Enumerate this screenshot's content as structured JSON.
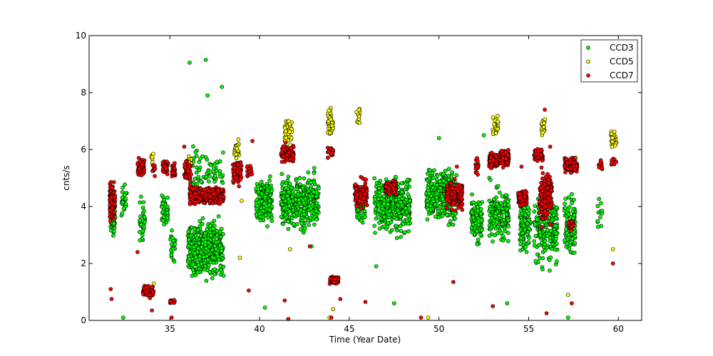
{
  "chart_data": {
    "type": "scatter",
    "title": "",
    "xlabel": "Time (Year Date)",
    "ylabel": "cnts/s",
    "xlim": [
      30.5,
      61.3
    ],
    "ylim": [
      0,
      10
    ],
    "xticks": [
      35,
      40,
      45,
      50,
      55,
      60
    ],
    "yticks": [
      0,
      2,
      4,
      6,
      8,
      10
    ],
    "grid": false,
    "legend_position": "top-right",
    "series": [
      {
        "name": "CCD3",
        "color": "#00ff00",
        "clusters": [
          {
            "x": [
              31.7,
              31.95
            ],
            "y": [
              2.8,
              4.2
            ],
            "n": 40
          },
          {
            "x": [
              32.3,
              32.6
            ],
            "y": [
              3.4,
              5.2
            ],
            "n": 25
          },
          {
            "x": [
              33.3,
              33.6
            ],
            "y": [
              2.3,
              4.6
            ],
            "n": 35
          },
          {
            "x": [
              34.5,
              34.9
            ],
            "y": [
              2.8,
              4.8
            ],
            "n": 45
          },
          {
            "x": [
              35.0,
              35.3
            ],
            "y": [
              1.5,
              3.8
            ],
            "n": 20
          },
          {
            "x": [
              36.0,
              38.0
            ],
            "y": [
              1.0,
              4.0
            ],
            "n": 420
          },
          {
            "x": [
              36.0,
              38.0
            ],
            "y": [
              4.0,
              6.5
            ],
            "n": 70
          },
          {
            "x": [
              39.8,
              40.7
            ],
            "y": [
              3.0,
              5.4
            ],
            "n": 170
          },
          {
            "x": [
              41.2,
              43.3
            ],
            "y": [
              2.8,
              5.5
            ],
            "n": 380
          },
          {
            "x": [
              45.4,
              45.9
            ],
            "y": [
              3.0,
              5.0
            ],
            "n": 45
          },
          {
            "x": [
              46.4,
              48.4
            ],
            "y": [
              2.5,
              5.6
            ],
            "n": 330
          },
          {
            "x": [
              49.3,
              51.0
            ],
            "y": [
              3.0,
              5.8
            ],
            "n": 330
          },
          {
            "x": [
              51.8,
              52.4
            ],
            "y": [
              2.3,
              4.8
            ],
            "n": 110
          },
          {
            "x": [
              52.8,
              53.9
            ],
            "y": [
              2.2,
              5.2
            ],
            "n": 160
          },
          {
            "x": [
              54.5,
              55.1
            ],
            "y": [
              1.9,
              4.8
            ],
            "n": 110
          },
          {
            "x": [
              55.3,
              56.6
            ],
            "y": [
              1.2,
              5.0
            ],
            "n": 190
          },
          {
            "x": [
              57.0,
              57.6
            ],
            "y": [
              1.8,
              4.8
            ],
            "n": 110
          },
          {
            "x": [
              58.8,
              59.1
            ],
            "y": [
              2.6,
              4.8
            ],
            "n": 12
          }
        ],
        "outliers": [
          [
            36.1,
            9.05
          ],
          [
            37.0,
            9.15
          ],
          [
            37.9,
            8.2
          ],
          [
            37.1,
            7.9
          ],
          [
            32.4,
            0.1
          ],
          [
            40.3,
            0.45
          ],
          [
            42.9,
            2.6
          ],
          [
            46.5,
            1.9
          ],
          [
            47.5,
            0.6
          ],
          [
            50.0,
            6.4
          ],
          [
            52.5,
            6.5
          ],
          [
            55.5,
            5.9
          ],
          [
            53.8,
            0.6
          ],
          [
            57.2,
            0.1
          ]
        ]
      },
      {
        "name": "CCD5",
        "color": "#ffff00",
        "clusters": [
          {
            "x": [
              33.9,
              34.1
            ],
            "y": [
              5.2,
              6.5
            ],
            "n": 6
          },
          {
            "x": [
              36.0,
              36.2
            ],
            "y": [
              5.2,
              5.9
            ],
            "n": 12
          },
          {
            "x": [
              38.6,
              38.9
            ],
            "y": [
              5.4,
              6.6
            ],
            "n": 25
          },
          {
            "x": [
              41.4,
              41.8
            ],
            "y": [
              5.9,
              7.4
            ],
            "n": 50
          },
          {
            "x": [
              43.8,
              44.1
            ],
            "y": [
              6.2,
              7.7
            ],
            "n": 45
          },
          {
            "x": [
              45.4,
              45.6
            ],
            "y": [
              6.6,
              7.7
            ],
            "n": 14
          },
          {
            "x": [
              53.0,
              53.3
            ],
            "y": [
              6.2,
              7.4
            ],
            "n": 25
          },
          {
            "x": [
              55.7,
              55.9
            ],
            "y": [
              6.2,
              7.4
            ],
            "n": 20
          },
          {
            "x": [
              57.2,
              57.7
            ],
            "y": [
              5.0,
              6.0
            ],
            "n": 25
          },
          {
            "x": [
              59.6,
              59.9
            ],
            "y": [
              5.8,
              7.0
            ],
            "n": 30
          }
        ],
        "outliers": [
          [
            41.7,
            2.5
          ],
          [
            43.9,
            0.1
          ],
          [
            44.1,
            0.4
          ],
          [
            49.4,
            0.1
          ],
          [
            57.2,
            0.9
          ],
          [
            59.7,
            2.5
          ],
          [
            38.9,
            2.2
          ],
          [
            39.0,
            4.2
          ],
          [
            34.1,
            1.3
          ]
        ]
      },
      {
        "name": "CCD7",
        "color": "#ff0000",
        "clusters": [
          {
            "x": [
              31.65,
              31.95
            ],
            "y": [
              3.2,
              5.1
            ],
            "n": 110
          },
          {
            "x": [
              33.2,
              33.6
            ],
            "y": [
              4.9,
              5.9
            ],
            "n": 55
          },
          {
            "x": [
              33.5,
              34.1
            ],
            "y": [
              0.7,
              1.3
            ],
            "n": 70
          },
          {
            "x": [
              34.0,
              34.2
            ],
            "y": [
              5.0,
              5.6
            ],
            "n": 10
          },
          {
            "x": [
              34.6,
              34.9
            ],
            "y": [
              5.0,
              5.8
            ],
            "n": 40
          },
          {
            "x": [
              35.0,
              35.3
            ],
            "y": [
              0.5,
              0.8
            ],
            "n": 15
          },
          {
            "x": [
              35.1,
              35.3
            ],
            "y": [
              4.9,
              5.7
            ],
            "n": 25
          },
          {
            "x": [
              35.8,
              36.2
            ],
            "y": [
              4.6,
              5.9
            ],
            "n": 45
          },
          {
            "x": [
              36.1,
              38.0
            ],
            "y": [
              4.0,
              4.8
            ],
            "n": 520
          },
          {
            "x": [
              38.5,
              39.0
            ],
            "y": [
              4.6,
              5.8
            ],
            "n": 70
          },
          {
            "x": [
              39.3,
              39.6
            ],
            "y": [
              4.8,
              5.7
            ],
            "n": 20
          },
          {
            "x": [
              41.2,
              41.9
            ],
            "y": [
              5.4,
              6.3
            ],
            "n": 110
          },
          {
            "x": [
              43.8,
              44.1
            ],
            "y": [
              5.5,
              6.3
            ],
            "n": 25
          },
          {
            "x": [
              43.9,
              44.4
            ],
            "y": [
              1.2,
              1.6
            ],
            "n": 70
          },
          {
            "x": [
              45.3,
              46.0
            ],
            "y": [
              3.7,
              5.2
            ],
            "n": 130
          },
          {
            "x": [
              47.0,
              47.6
            ],
            "y": [
              4.3,
              5.0
            ],
            "n": 160
          },
          {
            "x": [
              50.4,
              51.3
            ],
            "y": [
              3.6,
              5.2
            ],
            "n": 130
          },
          {
            "x": [
              52.0,
              52.2
            ],
            "y": [
              4.8,
              6.0
            ],
            "n": 15
          },
          {
            "x": [
              52.8,
              53.3
            ],
            "y": [
              5.2,
              6.0
            ],
            "n": 120
          },
          {
            "x": [
              53.4,
              53.9
            ],
            "y": [
              5.3,
              6.1
            ],
            "n": 130
          },
          {
            "x": [
              54.4,
              54.9
            ],
            "y": [
              3.9,
              4.7
            ],
            "n": 110
          },
          {
            "x": [
              55.3,
              55.8
            ],
            "y": [
              5.5,
              6.1
            ],
            "n": 60
          },
          {
            "x": [
              55.6,
              56.3
            ],
            "y": [
              3.0,
              5.6
            ],
            "n": 170
          },
          {
            "x": [
              57.0,
              57.7
            ],
            "y": [
              5.1,
              5.8
            ],
            "n": 140
          },
          {
            "x": [
              57.2,
              57.5
            ],
            "y": [
              3.0,
              3.8
            ],
            "n": 25
          },
          {
            "x": [
              58.8,
              59.1
            ],
            "y": [
              5.2,
              5.7
            ],
            "n": 10
          },
          {
            "x": [
              59.6,
              59.9
            ],
            "y": [
              5.3,
              5.8
            ],
            "n": 25
          }
        ],
        "outliers": [
          [
            31.7,
            1.1
          ],
          [
            31.75,
            0.75
          ],
          [
            33.2,
            2.4
          ],
          [
            34.0,
            0.35
          ],
          [
            35.8,
            6.1
          ],
          [
            39.6,
            6.3
          ],
          [
            39.4,
            1.05
          ],
          [
            41.4,
            0.7
          ],
          [
            41.6,
            0.05
          ],
          [
            42.8,
            2.6
          ],
          [
            44.0,
            0.1
          ],
          [
            44.5,
            0.75
          ],
          [
            45.9,
            0.65
          ],
          [
            49.0,
            0.1
          ],
          [
            50.8,
            1.35
          ],
          [
            53.0,
            0.5
          ],
          [
            54.6,
            5.4
          ],
          [
            55.9,
            7.4
          ],
          [
            56.2,
            6.1
          ],
          [
            56.0,
            0.25
          ],
          [
            57.4,
            0.6
          ],
          [
            59.7,
            2.0
          ],
          [
            35.1,
            0.1
          ],
          [
            51.0,
            5.4
          ]
        ]
      }
    ]
  }
}
